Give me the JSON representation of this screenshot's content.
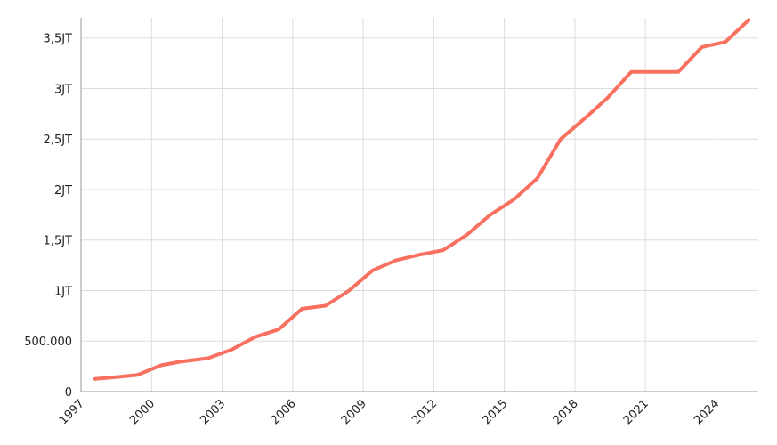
{
  "chart_data": {
    "type": "line",
    "title": "",
    "xlabel": "",
    "ylabel": "",
    "x_range": [
      1997,
      2025.8
    ],
    "ylim": [
      0,
      3700000
    ],
    "grid": true,
    "legend": "none",
    "x_tick_values": [
      1997,
      2000,
      2003,
      2006,
      2009,
      2012,
      2015,
      2018,
      2021,
      2024
    ],
    "x_tick_labels": [
      "1997",
      "2000",
      "2003",
      "2006",
      "2009",
      "2012",
      "2015",
      "2018",
      "2021",
      "2024"
    ],
    "y_tick_values": [
      0,
      500000,
      1000000,
      1500000,
      2000000,
      2500000,
      3000000,
      3500000
    ],
    "y_tick_labels": [
      "0",
      "500.000",
      "1JT",
      "1,5JT",
      "2JT",
      "2,5JT",
      "3JT",
      "3,5JT"
    ],
    "series": [
      {
        "color": "#f87060",
        "points": [
          [
            1997.6,
            125000
          ],
          [
            1998.6,
            145000
          ],
          [
            1999.4,
            165000
          ],
          [
            2000.4,
            260000
          ],
          [
            2001.2,
            295000
          ],
          [
            2002.4,
            330000
          ],
          [
            2003.4,
            415000
          ],
          [
            2004.4,
            540000
          ],
          [
            2005.4,
            615000
          ],
          [
            2006.4,
            820000
          ],
          [
            2007.4,
            850000
          ],
          [
            2008.4,
            1000000
          ],
          [
            2009.4,
            1200000
          ],
          [
            2010.4,
            1300000
          ],
          [
            2011.4,
            1355000
          ],
          [
            2012.4,
            1400000
          ],
          [
            2013.4,
            1550000
          ],
          [
            2014.4,
            1750000
          ],
          [
            2015.4,
            1900000
          ],
          [
            2016.4,
            2110000
          ],
          [
            2017.4,
            2500000
          ],
          [
            2018.4,
            2700000
          ],
          [
            2019.4,
            2910000
          ],
          [
            2020.4,
            3165000
          ],
          [
            2021.4,
            3165000
          ],
          [
            2022.4,
            3165000
          ],
          [
            2023.4,
            3410000
          ],
          [
            2024.4,
            3460000
          ],
          [
            2025.4,
            3680000
          ]
        ]
      }
    ]
  }
}
